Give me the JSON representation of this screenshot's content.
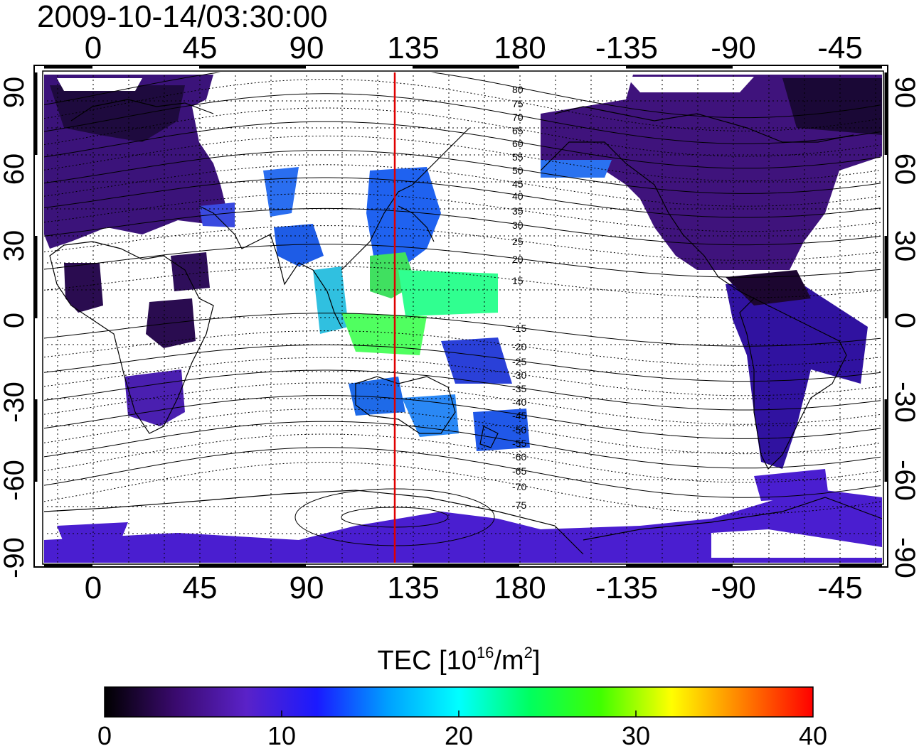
{
  "timestamp": "2009-10-14/03:30:00",
  "top_longitude_labels": [
    "0",
    "45",
    "90",
    "135",
    "180",
    "-135",
    "-90",
    "-45"
  ],
  "bottom_longitude_labels": [
    "0",
    "45",
    "90",
    "135",
    "180",
    "-135",
    "-90",
    "-45"
  ],
  "left_latitude_labels": [
    "90",
    "60",
    "30",
    "0",
    "-30",
    "-60",
    "-90"
  ],
  "right_latitude_labels": [
    "90",
    "60",
    "30",
    "0",
    "-30",
    "-60",
    "-90"
  ],
  "magnetic_latitude_labels_north": [
    "80",
    "75",
    "70",
    "65",
    "60",
    "55",
    "50",
    "45",
    "40",
    "35",
    "30",
    "25",
    "20",
    "15"
  ],
  "magnetic_latitude_labels_south": [
    "-15",
    "-20",
    "-25",
    "-30",
    "-35",
    "-40",
    "-45",
    "-50",
    "-55",
    "-60",
    "-65",
    "-70",
    "-75"
  ],
  "colorbar": {
    "title_prefix": "TEC  [10",
    "title_exp1": "16",
    "title_mid": "/m",
    "title_exp2": "2",
    "title_suffix": "]",
    "ticks": [
      "0",
      "10",
      "20",
      "30",
      "40"
    ],
    "min": 0,
    "max": 40,
    "colors": [
      "#000000",
      "#3a0a6e",
      "#5a22c8",
      "#1a1aff",
      "#00a0ff",
      "#00ffff",
      "#00ff60",
      "#40ff00",
      "#ffff00",
      "#ff8000",
      "#ff0000"
    ]
  },
  "marker_longitude": 127.5,
  "marker_color": "#e00000"
}
